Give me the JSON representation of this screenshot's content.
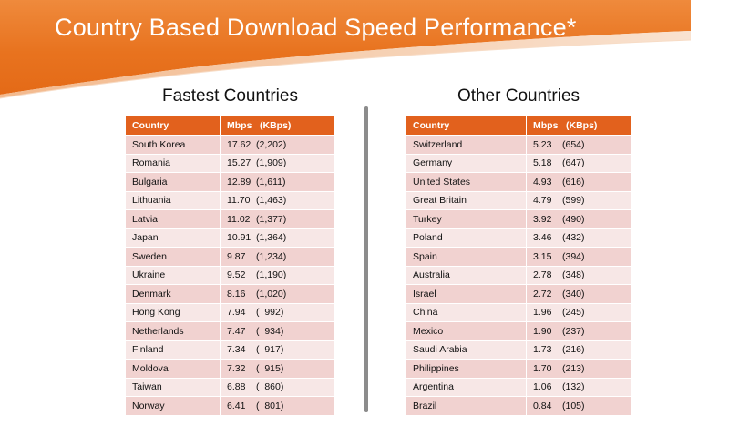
{
  "title": "Country Based Download Speed Performance*",
  "colors": {
    "accent": "#e2611d",
    "row_odd": "#f1d2d0",
    "row_even": "#f7e7e6"
  },
  "fastest": {
    "heading": "Fastest Countries",
    "columns": {
      "country": "Country",
      "mbps": "Mbps",
      "kbps": "(KBps)"
    },
    "rows": [
      {
        "country": "South Korea",
        "mbps": "17.62",
        "kbps": "(2,202)"
      },
      {
        "country": "Romania",
        "mbps": "15.27",
        "kbps": "(1,909)"
      },
      {
        "country": "Bulgaria",
        "mbps": "12.89",
        "kbps": "(1,611)"
      },
      {
        "country": "Lithuania",
        "mbps": "11.70",
        "kbps": "(1,463)"
      },
      {
        "country": "Latvia",
        "mbps": "11.02",
        "kbps": "(1,377)"
      },
      {
        "country": "Japan",
        "mbps": "10.91",
        "kbps": "(1,364)"
      },
      {
        "country": "Sweden",
        "mbps": "9.87",
        "kbps": "(1,234)"
      },
      {
        "country": "Ukraine",
        "mbps": "9.52",
        "kbps": "(1,190)"
      },
      {
        "country": "Denmark",
        "mbps": "8.16",
        "kbps": "(1,020)"
      },
      {
        "country": "Hong Kong",
        "mbps": "7.94",
        "kbps": "(  992)"
      },
      {
        "country": "Netherlands",
        "mbps": "7.47",
        "kbps": "(  934)"
      },
      {
        "country": "Finland",
        "mbps": "7.34",
        "kbps": "(  917)"
      },
      {
        "country": "Moldova",
        "mbps": "7.32",
        "kbps": "(  915)"
      },
      {
        "country": "Taiwan",
        "mbps": "6.88",
        "kbps": "(  860)"
      },
      {
        "country": "Norway",
        "mbps": "6.41",
        "kbps": "(  801)"
      }
    ]
  },
  "other": {
    "heading": "Other Countries",
    "columns": {
      "country": "Country",
      "mbps": "Mbps",
      "kbps": "(KBps)"
    },
    "rows": [
      {
        "country": "Switzerland",
        "mbps": "5.23",
        "kbps": "(654)"
      },
      {
        "country": "Germany",
        "mbps": "5.18",
        "kbps": "(647)"
      },
      {
        "country": "United States",
        "mbps": "4.93",
        "kbps": "(616)"
      },
      {
        "country": "Great Britain",
        "mbps": "4.79",
        "kbps": "(599)"
      },
      {
        "country": "Turkey",
        "mbps": "3.92",
        "kbps": "(490)"
      },
      {
        "country": "Poland",
        "mbps": "3.46",
        "kbps": "(432)"
      },
      {
        "country": "Spain",
        "mbps": "3.15",
        "kbps": "(394)"
      },
      {
        "country": "Australia",
        "mbps": "2.78",
        "kbps": "(348)"
      },
      {
        "country": "Israel",
        "mbps": "2.72",
        "kbps": "(340)"
      },
      {
        "country": "China",
        "mbps": "1.96",
        "kbps": "(245)"
      },
      {
        "country": "Mexico",
        "mbps": "1.90",
        "kbps": "(237)"
      },
      {
        "country": "Saudi Arabia",
        "mbps": "1.73",
        "kbps": "(216)"
      },
      {
        "country": "Philippines",
        "mbps": "1.70",
        "kbps": "(213)"
      },
      {
        "country": "Argentina",
        "mbps": "1.06",
        "kbps": "(132)"
      },
      {
        "country": "Brazil",
        "mbps": "0.84",
        "kbps": "(105)"
      }
    ]
  }
}
